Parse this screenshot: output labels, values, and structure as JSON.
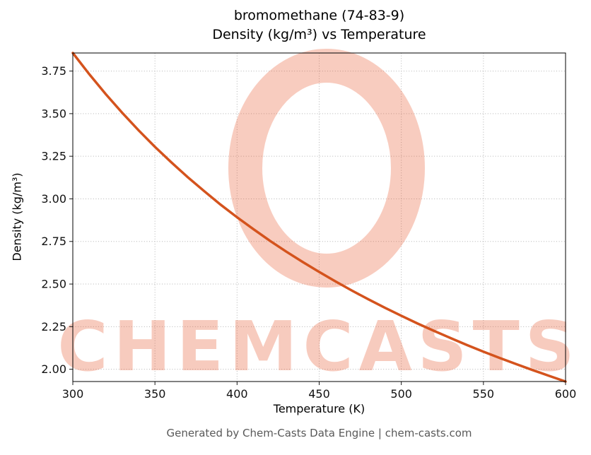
{
  "chart_data": {
    "type": "line",
    "title": "bromomethane (74-83-9)",
    "subtitle": "Density (kg/m³) vs Temperature",
    "xlabel": "Temperature (K)",
    "ylabel": "Density (kg/m³)",
    "xlim": [
      300,
      600
    ],
    "ylim": [
      1.928,
      3.856
    ],
    "xticks": [
      300,
      350,
      400,
      450,
      500,
      550,
      600
    ],
    "xtick_labels": [
      "300",
      "350",
      "400",
      "450",
      "500",
      "550",
      "600"
    ],
    "yticks": [
      2.0,
      2.25,
      2.5,
      2.75,
      3.0,
      3.25,
      3.5,
      3.75
    ],
    "ytick_labels": [
      "2.00",
      "2.25",
      "2.50",
      "2.75",
      "3.00",
      "3.25",
      "3.50",
      "3.75"
    ],
    "grid": true,
    "legend": "none",
    "line_color": "#d4531d",
    "series": [
      {
        "name": "density",
        "x": [
          300,
          310,
          320,
          330,
          340,
          350,
          360,
          370,
          380,
          390,
          400,
          410,
          420,
          430,
          440,
          450,
          460,
          470,
          480,
          490,
          500,
          510,
          520,
          530,
          540,
          550,
          560,
          570,
          580,
          590,
          600
        ],
        "y": [
          3.856,
          3.732,
          3.615,
          3.506,
          3.403,
          3.305,
          3.214,
          3.127,
          3.045,
          2.966,
          2.892,
          2.822,
          2.754,
          2.69,
          2.629,
          2.571,
          2.515,
          2.461,
          2.41,
          2.361,
          2.314,
          2.268,
          2.225,
          2.183,
          2.142,
          2.103,
          2.066,
          2.03,
          1.995,
          1.961,
          1.928
        ]
      }
    ]
  },
  "watermark": {
    "text": "CHEMCASTS",
    "color": "#e8552b"
  },
  "footer": {
    "text": "Generated by Chem-Casts Data Engine | chem-casts.com"
  }
}
